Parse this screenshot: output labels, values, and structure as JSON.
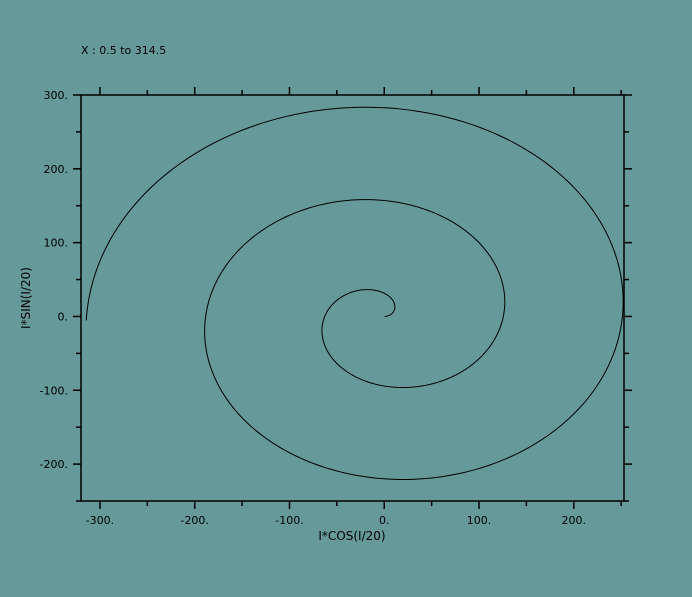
{
  "background_color": "#669999",
  "line_color": "#000000",
  "chart_data": {
    "type": "line",
    "title": "X : 0.5 to 314.5",
    "xlabel": "I*COS(I/20)",
    "ylabel": "I*SIN(I/20)",
    "xlim": [
      -320,
      253
    ],
    "ylim": [
      -250,
      300
    ],
    "x_major_ticks": [
      -300,
      -200,
      -100,
      0,
      100,
      200
    ],
    "x_tick_labels": [
      "-300.",
      "-200.",
      "-100.",
      "0.",
      "100.",
      "200."
    ],
    "x_minor_ticks": [
      -250,
      -150,
      -50,
      50,
      150,
      250
    ],
    "y_major_ticks": [
      -200,
      -100,
      0,
      100,
      200,
      300
    ],
    "y_tick_labels": [
      "-200.",
      "-100.",
      "0.",
      "100.",
      "200.",
      "300."
    ],
    "y_minor_ticks": [
      -250,
      -150,
      -50,
      50,
      150,
      250
    ],
    "grid": false,
    "series": [
      {
        "formula": "x = I*cos(I/20), y = I*sin(I/20)",
        "i_range": [
          0.5,
          314.5
        ]
      }
    ]
  }
}
